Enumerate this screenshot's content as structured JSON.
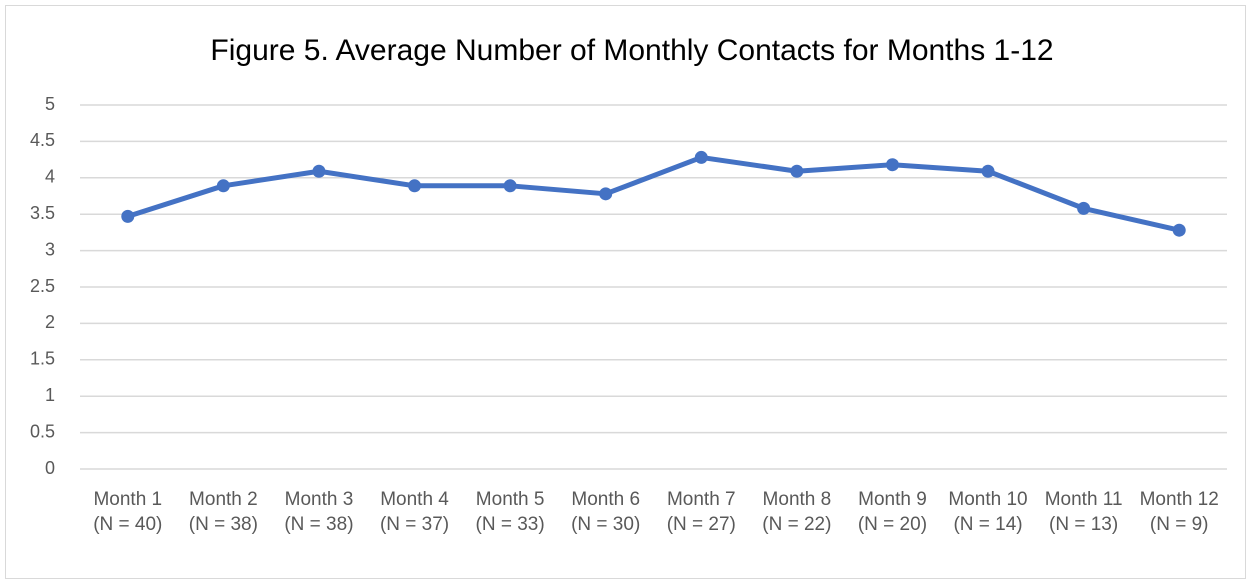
{
  "chart_data": {
    "type": "line",
    "title": "Figure 5. Average Number of Monthly Contacts for Months 1-12",
    "categories": [
      "Month 1 (N = 40)",
      "Month 2 (N = 38)",
      "Month 3 (N = 38)",
      "Month 4 (N = 37)",
      "Month 5 (N = 33)",
      "Month 6 (N = 30)",
      "Month 7 (N = 27)",
      "Month 8 (N = 22)",
      "Month 9 (N = 20)",
      "Month 10 (N = 14)",
      "Month 11 (N = 13)",
      "Month 12 (N = 9)"
    ],
    "values": [
      3.47,
      3.89,
      4.09,
      3.89,
      3.89,
      3.78,
      4.28,
      4.09,
      4.18,
      4.09,
      3.58,
      3.28
    ],
    "color": "#4472c4",
    "ylim": [
      0,
      5
    ],
    "yticks": [
      0,
      0.5,
      1,
      1.5,
      2,
      2.5,
      3,
      3.5,
      4,
      4.5,
      5
    ],
    "grid": true
  }
}
